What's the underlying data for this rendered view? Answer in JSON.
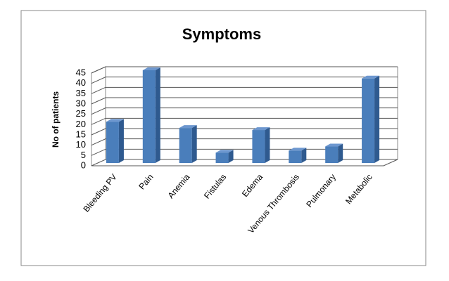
{
  "chart_data": {
    "type": "bar3d",
    "title": "Symptoms",
    "y_label": "No of patients",
    "categories": [
      "Bleeding PV",
      "Pain",
      "Anemia",
      "Fistulas",
      "Edema",
      "Venous Thrombosis",
      "Pulmonary",
      "Metabolic"
    ],
    "values": [
      20,
      45,
      17,
      5,
      16,
      6,
      8,
      41
    ],
    "color": "#4a7ebb",
    "ylim": [
      0,
      45
    ],
    "yticks": [
      0,
      5,
      10,
      15,
      20,
      25,
      30,
      35,
      40,
      45
    ],
    "grid": true
  }
}
